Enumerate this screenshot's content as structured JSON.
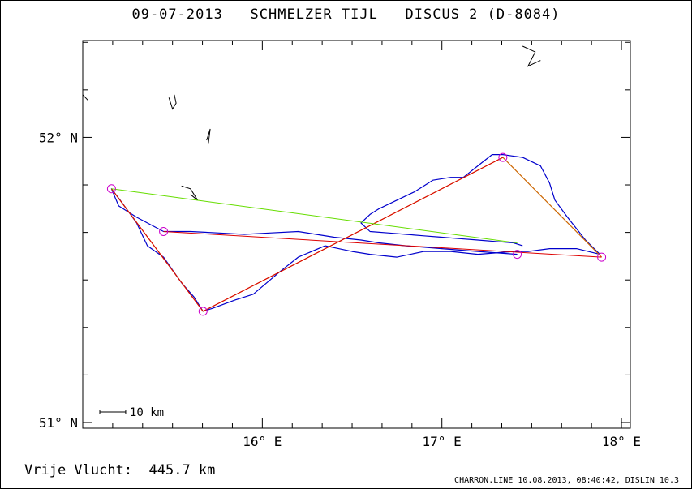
{
  "title": "09-07-2013   SCHMELZER TIJL   DISCUS 2 (D-8084)",
  "result_text": "Vrije Vlucht:  445.7 km",
  "footer_text": "CHARRON.LINE 10.08.2013, 08:40:42, DISLIN 10.3",
  "scale_bar": {
    "label": "10 km",
    "km": 10
  },
  "map": {
    "lon_range": [
      15.0,
      18.05
    ],
    "lat_range": [
      50.98,
      52.34
    ],
    "x_ticks": [
      {
        "lon": 16.0,
        "label": "16° E"
      },
      {
        "lon": 17.0,
        "label": "17° E"
      },
      {
        "lon": 18.0,
        "label": "18° E"
      }
    ],
    "y_ticks": [
      {
        "lat": 52.0,
        "label": "52° N"
      },
      {
        "lat": 51.0,
        "label": "51° N"
      }
    ],
    "minor_tick_step_lat": 0.1667,
    "minor_tick_step_lon": 0.1667
  },
  "colors": {
    "track": "#0000cc",
    "task_orange": "#cc6600",
    "leg_red": "#dd0000",
    "leg_green": "#66dd00",
    "turnpoint": "#cc00cc",
    "coast": "#000000"
  },
  "turnpoints": [
    {
      "lon": 15.16,
      "lat": 51.82
    },
    {
      "lon": 15.45,
      "lat": 51.67
    },
    {
      "lon": 15.67,
      "lat": 51.39
    },
    {
      "lon": 17.34,
      "lat": 51.93
    },
    {
      "lon": 17.89,
      "lat": 51.58
    },
    {
      "lon": 17.42,
      "lat": 51.59
    }
  ],
  "task_route": [
    {
      "lon": 15.16,
      "lat": 51.82
    },
    {
      "lon": 15.67,
      "lat": 51.39
    },
    {
      "lon": 17.34,
      "lat": 51.93
    },
    {
      "lon": 17.89,
      "lat": 51.58
    }
  ],
  "red_legs": [
    [
      {
        "lon": 15.16,
        "lat": 51.82
      },
      {
        "lon": 15.67,
        "lat": 51.39
      }
    ],
    [
      {
        "lon": 15.67,
        "lat": 51.39
      },
      {
        "lon": 17.34,
        "lat": 51.93
      }
    ],
    [
      {
        "lon": 15.45,
        "lat": 51.67
      },
      {
        "lon": 17.89,
        "lat": 51.58
      }
    ]
  ],
  "green_leg": [
    {
      "lon": 15.16,
      "lat": 51.82
    },
    {
      "lon": 17.42,
      "lat": 51.63
    }
  ],
  "track": [
    {
      "lon": 17.45,
      "lat": 51.62
    },
    {
      "lon": 17.4,
      "lat": 51.63
    },
    {
      "lon": 17.3,
      "lat": 51.635
    },
    {
      "lon": 17.2,
      "lat": 51.64
    },
    {
      "lon": 17.1,
      "lat": 51.645
    },
    {
      "lon": 17.0,
      "lat": 51.65
    },
    {
      "lon": 16.9,
      "lat": 51.655
    },
    {
      "lon": 16.8,
      "lat": 51.66
    },
    {
      "lon": 16.7,
      "lat": 51.665
    },
    {
      "lon": 16.6,
      "lat": 51.67
    },
    {
      "lon": 16.55,
      "lat": 51.7
    },
    {
      "lon": 16.6,
      "lat": 51.73
    },
    {
      "lon": 16.65,
      "lat": 51.75
    },
    {
      "lon": 16.75,
      "lat": 51.78
    },
    {
      "lon": 16.85,
      "lat": 51.81
    },
    {
      "lon": 16.95,
      "lat": 51.85
    },
    {
      "lon": 17.05,
      "lat": 51.86
    },
    {
      "lon": 17.12,
      "lat": 51.86
    },
    {
      "lon": 17.2,
      "lat": 51.9
    },
    {
      "lon": 17.28,
      "lat": 51.94
    },
    {
      "lon": 17.34,
      "lat": 51.94
    },
    {
      "lon": 17.45,
      "lat": 51.93
    },
    {
      "lon": 17.55,
      "lat": 51.9
    },
    {
      "lon": 17.6,
      "lat": 51.84
    },
    {
      "lon": 17.63,
      "lat": 51.78
    },
    {
      "lon": 17.7,
      "lat": 51.72
    },
    {
      "lon": 17.8,
      "lat": 51.64
    },
    {
      "lon": 17.88,
      "lat": 51.59
    },
    {
      "lon": 17.75,
      "lat": 51.61
    },
    {
      "lon": 17.6,
      "lat": 51.61
    },
    {
      "lon": 17.48,
      "lat": 51.6
    },
    {
      "lon": 17.4,
      "lat": 51.6
    },
    {
      "lon": 17.2,
      "lat": 51.59
    },
    {
      "lon": 17.05,
      "lat": 51.6
    },
    {
      "lon": 16.9,
      "lat": 51.6
    },
    {
      "lon": 16.75,
      "lat": 51.58
    },
    {
      "lon": 16.6,
      "lat": 51.59
    },
    {
      "lon": 16.5,
      "lat": 51.6
    },
    {
      "lon": 16.35,
      "lat": 51.62
    },
    {
      "lon": 16.2,
      "lat": 51.58
    },
    {
      "lon": 16.1,
      "lat": 51.53
    },
    {
      "lon": 15.95,
      "lat": 51.45
    },
    {
      "lon": 15.85,
      "lat": 51.43
    },
    {
      "lon": 15.72,
      "lat": 51.4
    },
    {
      "lon": 15.67,
      "lat": 51.39
    },
    {
      "lon": 15.62,
      "lat": 51.44
    },
    {
      "lon": 15.55,
      "lat": 51.49
    },
    {
      "lon": 15.45,
      "lat": 51.58
    },
    {
      "lon": 15.36,
      "lat": 51.62
    },
    {
      "lon": 15.3,
      "lat": 51.7
    },
    {
      "lon": 15.22,
      "lat": 51.77
    },
    {
      "lon": 15.16,
      "lat": 51.82
    },
    {
      "lon": 15.2,
      "lat": 51.76
    },
    {
      "lon": 15.3,
      "lat": 51.72
    },
    {
      "lon": 15.45,
      "lat": 51.67
    },
    {
      "lon": 15.6,
      "lat": 51.67
    },
    {
      "lon": 15.75,
      "lat": 51.665
    },
    {
      "lon": 15.9,
      "lat": 51.66
    },
    {
      "lon": 16.05,
      "lat": 51.665
    },
    {
      "lon": 16.2,
      "lat": 51.67
    },
    {
      "lon": 16.3,
      "lat": 51.66
    },
    {
      "lon": 16.4,
      "lat": 51.65
    },
    {
      "lon": 16.55,
      "lat": 51.64
    },
    {
      "lon": 16.65,
      "lat": 51.63
    },
    {
      "lon": 16.8,
      "lat": 51.62
    },
    {
      "lon": 17.0,
      "lat": 51.61
    },
    {
      "lon": 17.2,
      "lat": 51.6
    },
    {
      "lon": 17.42,
      "lat": 51.59
    }
  ],
  "coast_shapes": [
    [
      {
        "lon": 15.48,
        "lat": 52.14
      },
      {
        "lon": 15.5,
        "lat": 52.1
      },
      {
        "lon": 15.52,
        "lat": 52.12
      },
      {
        "lon": 15.51,
        "lat": 52.15
      }
    ],
    [
      {
        "lon": 15.69,
        "lat": 51.99
      },
      {
        "lon": 15.71,
        "lat": 52.03
      },
      {
        "lon": 15.7,
        "lat": 51.98
      }
    ],
    [
      {
        "lon": 15.55,
        "lat": 51.83
      },
      {
        "lon": 15.6,
        "lat": 51.82
      },
      {
        "lon": 15.64,
        "lat": 51.78
      },
      {
        "lon": 15.6,
        "lat": 51.8
      }
    ],
    [
      {
        "lon": 17.45,
        "lat": 52.32
      },
      {
        "lon": 17.52,
        "lat": 52.3
      },
      {
        "lon": 17.48,
        "lat": 52.25
      },
      {
        "lon": 17.55,
        "lat": 52.27
      }
    ],
    [
      {
        "lon": 15.0,
        "lat": 52.15
      },
      {
        "lon": 15.03,
        "lat": 52.13
      }
    ]
  ]
}
